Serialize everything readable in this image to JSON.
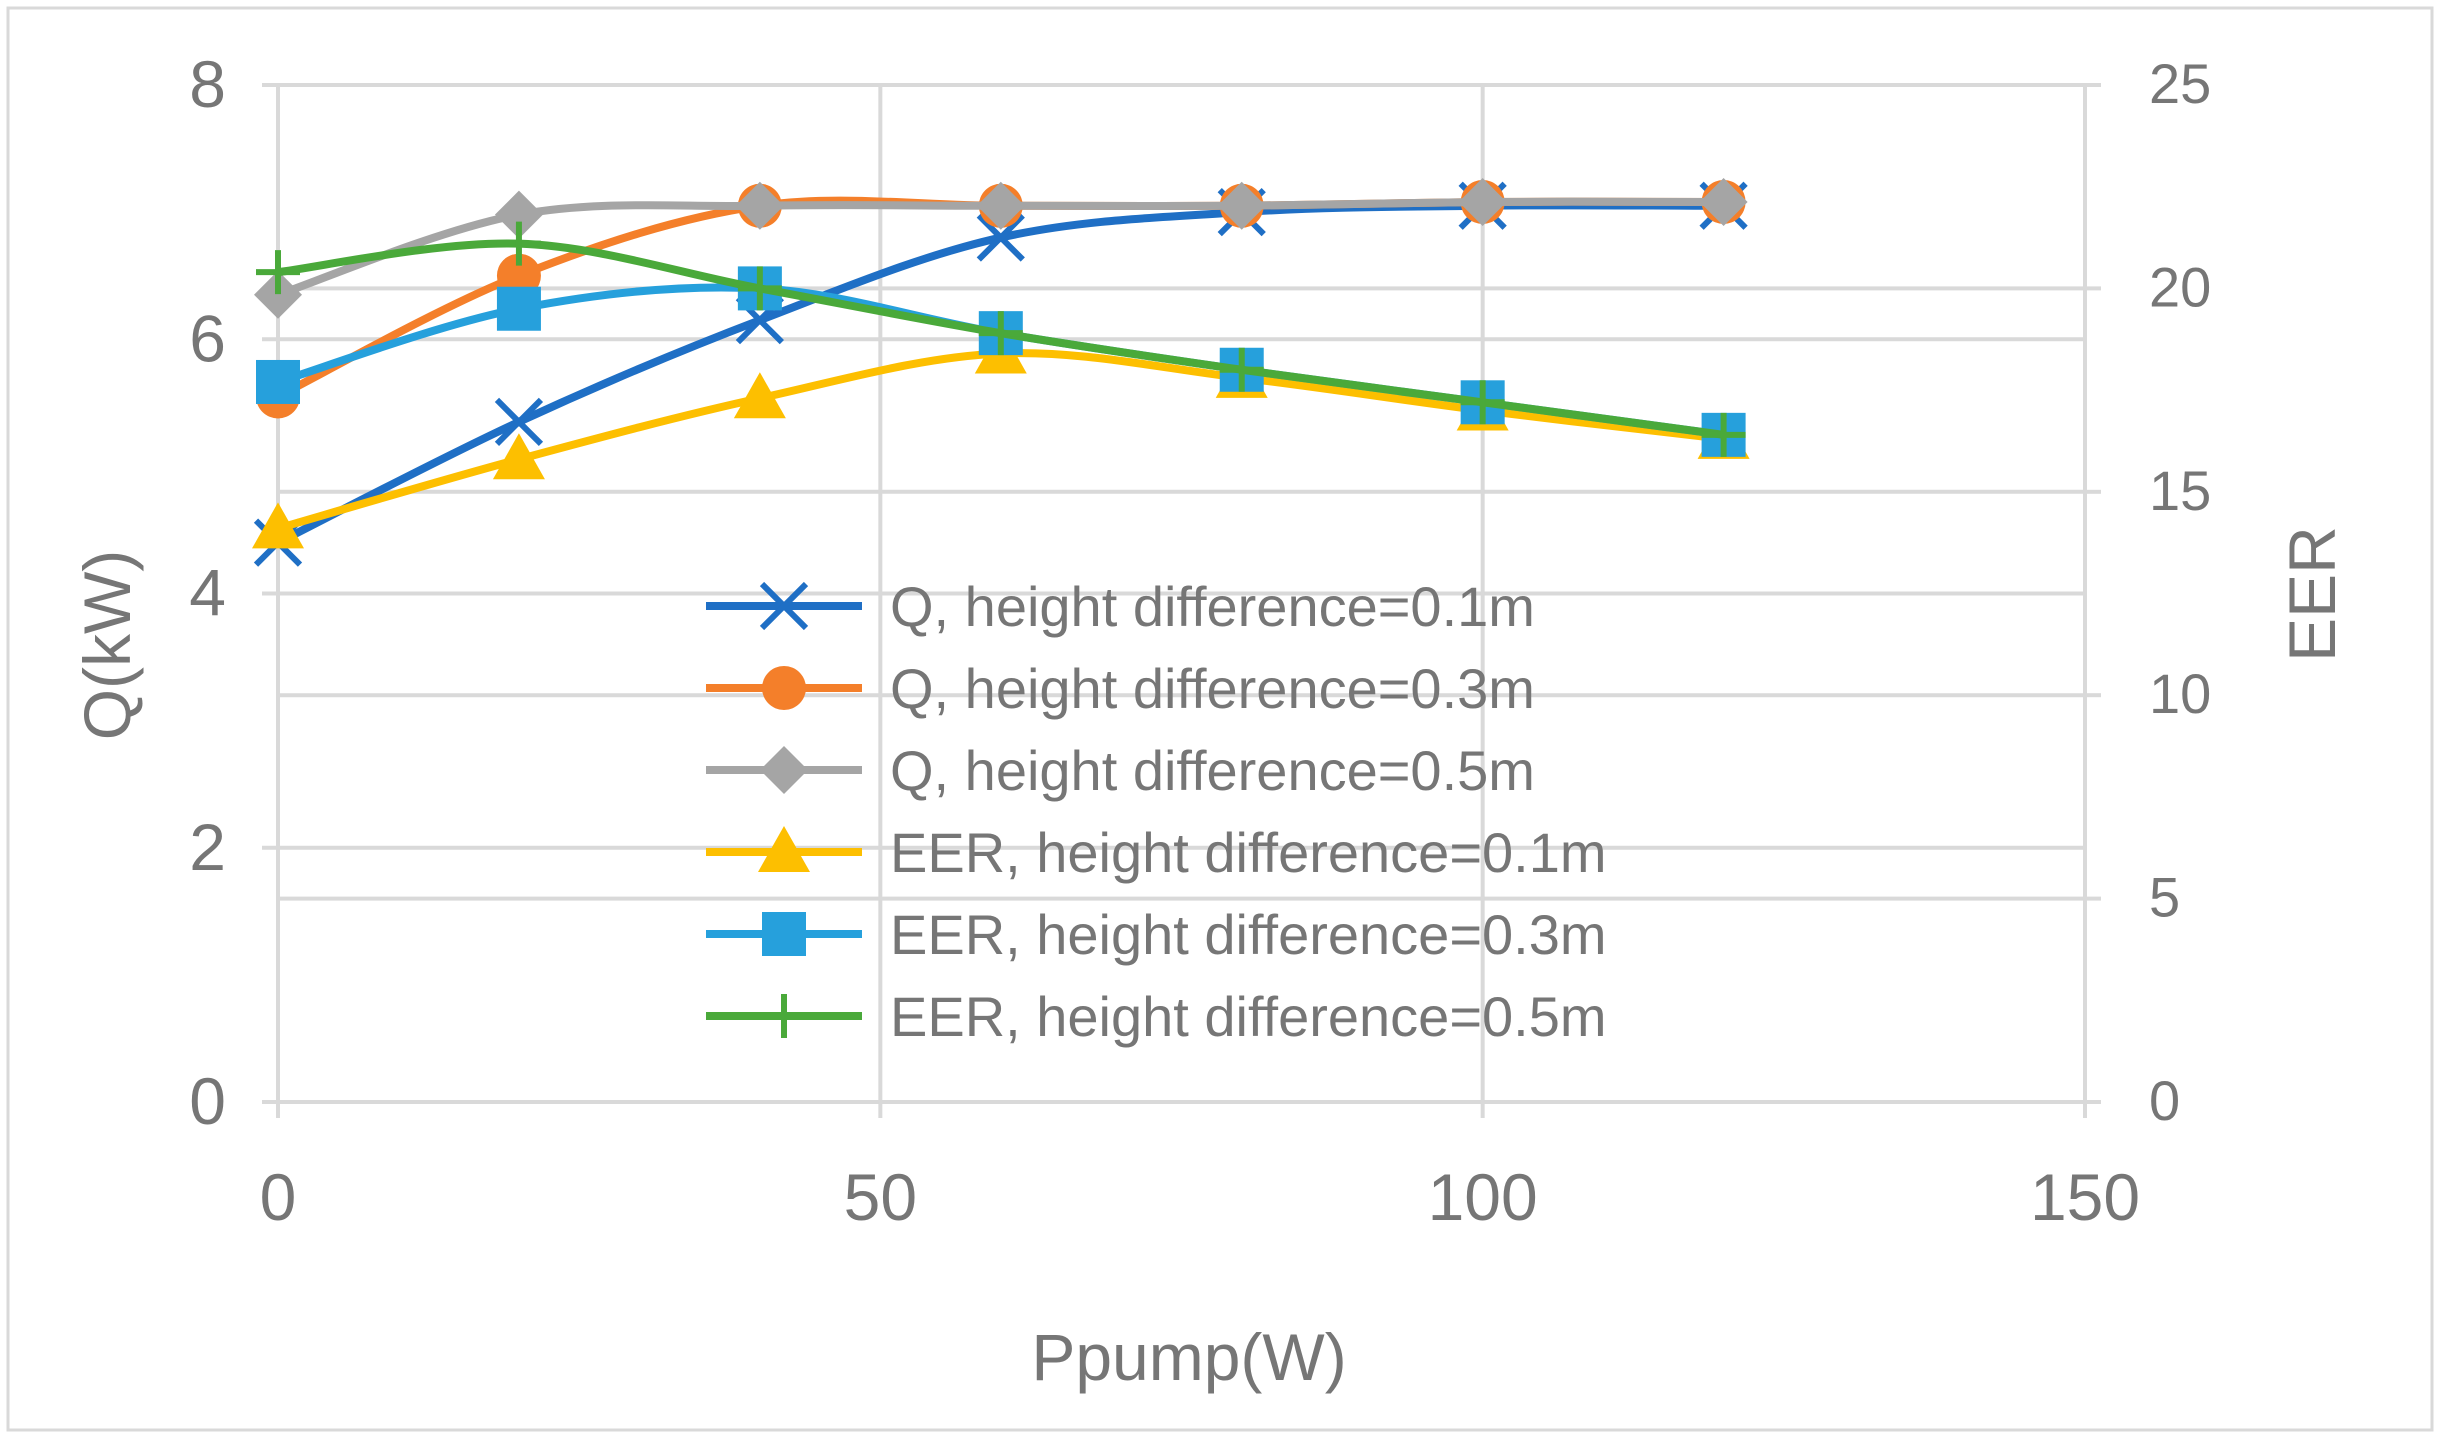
{
  "chart_data": {
    "type": "line",
    "title": "",
    "xlabel": "Ppump(W)",
    "ylabel_left": "Q(kW)",
    "ylabel_right": "EER",
    "xlim": [
      0,
      150
    ],
    "ylim_left": [
      0,
      8
    ],
    "ylim_right": [
      0,
      25
    ],
    "x_ticks": [
      "0",
      "50",
      "100",
      "150"
    ],
    "y_left_ticks": [
      "0",
      "2",
      "4",
      "6",
      "8"
    ],
    "y_right_ticks": [
      "0",
      "5",
      "10",
      "15",
      "20",
      "25"
    ],
    "grid": true,
    "legend_position": "center",
    "series": [
      {
        "name": "Q, height difference=0.1m",
        "axis": "left",
        "color": "#1f6fc5",
        "marker": "x",
        "x": [
          0,
          20,
          40,
          60,
          80,
          100,
          120
        ],
        "y": [
          4.4,
          5.35,
          6.15,
          6.8,
          7.0,
          7.05,
          7.05
        ]
      },
      {
        "name": "Q, height difference=0.3m",
        "axis": "left",
        "color": "#f47f2a",
        "marker": "circle",
        "x": [
          0,
          20,
          40,
          60,
          80,
          100,
          120
        ],
        "y": [
          5.55,
          6.5,
          7.05,
          7.05,
          7.05,
          7.08,
          7.08
        ]
      },
      {
        "name": "Q, height difference=0.5m",
        "axis": "left",
        "color": "#a5a5a5",
        "marker": "diamond",
        "x": [
          0,
          20,
          40,
          60,
          80,
          100,
          120
        ],
        "y": [
          6.35,
          6.98,
          7.05,
          7.05,
          7.05,
          7.08,
          7.08
        ]
      },
      {
        "name": "EER, height difference=0.1m",
        "axis": "right",
        "color": "#fdbf00",
        "marker": "triangle",
        "x": [
          0,
          20,
          40,
          60,
          80,
          100,
          120
        ],
        "y": [
          14.1,
          15.8,
          17.3,
          18.4,
          17.8,
          17.0,
          16.3
        ]
      },
      {
        "name": "EER, height difference=0.3m",
        "axis": "right",
        "color": "#26a0dc",
        "marker": "square",
        "x": [
          0,
          20,
          40,
          60,
          80,
          100,
          120
        ],
        "y": [
          17.7,
          19.5,
          20.0,
          18.9,
          18.0,
          17.2,
          16.4
        ]
      },
      {
        "name": "EER, height difference=0.5m",
        "axis": "right",
        "color": "#4aa93a",
        "marker": "plus",
        "x": [
          0,
          20,
          40,
          60,
          80,
          100,
          120
        ],
        "y": [
          20.4,
          21.1,
          20.0,
          18.9,
          18.0,
          17.2,
          16.4
        ]
      }
    ]
  }
}
